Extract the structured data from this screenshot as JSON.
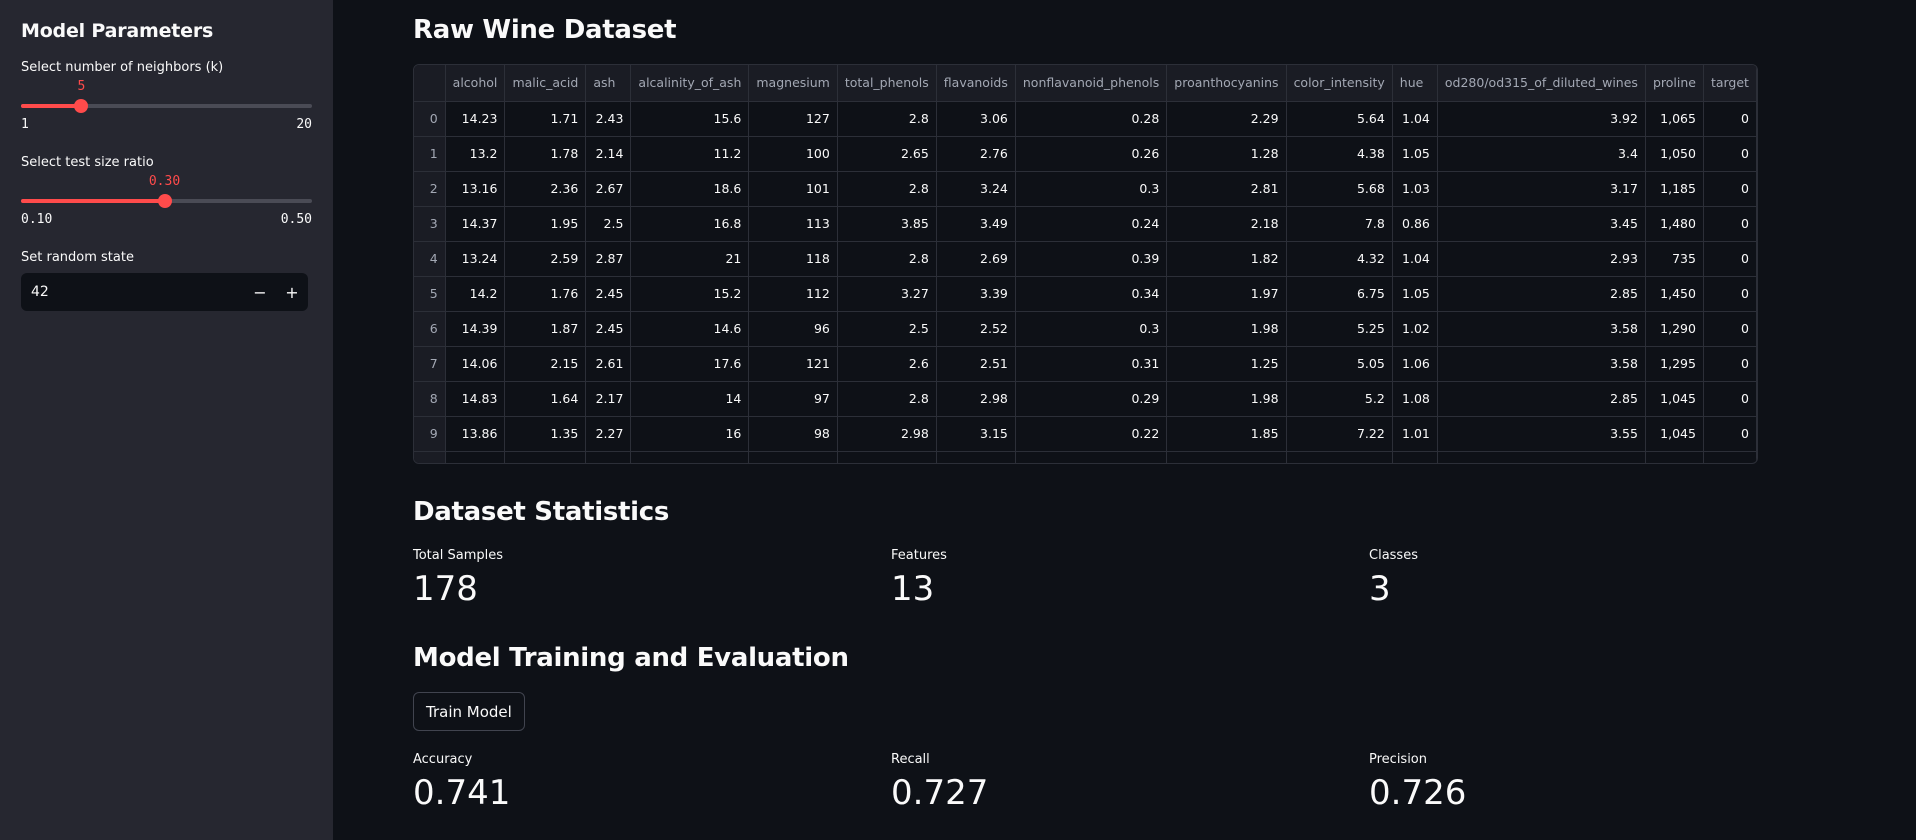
{
  "sidebar": {
    "title": "Model Parameters",
    "k_slider": {
      "label": "Select number of neighbors (k)",
      "value": "5",
      "min": "1",
      "max": "20",
      "fraction": 0.2105
    },
    "test_slider": {
      "label": "Select test size ratio",
      "value": "0.30",
      "min": "0.10",
      "max": "0.50",
      "fraction": 0.5
    },
    "random_state": {
      "label": "Set random state",
      "value": "42",
      "minus": "−",
      "plus": "+"
    }
  },
  "main": {
    "raw_title": "Raw Wine Dataset",
    "table": {
      "columns": [
        "",
        "alcohol",
        "malic_acid",
        "ash",
        "alcalinity_of_ash",
        "magnesium",
        "total_phenols",
        "flavanoids",
        "nonflavanoid_phenols",
        "proanthocyanins",
        "color_intensity",
        "hue",
        "od280/od315_of_diluted_wines",
        "proline",
        "target"
      ],
      "rows": [
        [
          "0",
          "14.23",
          "1.71",
          "2.43",
          "15.6",
          "127",
          "2.8",
          "3.06",
          "0.28",
          "2.29",
          "5.64",
          "1.04",
          "3.92",
          "1,065",
          "0"
        ],
        [
          "1",
          "13.2",
          "1.78",
          "2.14",
          "11.2",
          "100",
          "2.65",
          "2.76",
          "0.26",
          "1.28",
          "4.38",
          "1.05",
          "3.4",
          "1,050",
          "0"
        ],
        [
          "2",
          "13.16",
          "2.36",
          "2.67",
          "18.6",
          "101",
          "2.8",
          "3.24",
          "0.3",
          "2.81",
          "5.68",
          "1.03",
          "3.17",
          "1,185",
          "0"
        ],
        [
          "3",
          "14.37",
          "1.95",
          "2.5",
          "16.8",
          "113",
          "3.85",
          "3.49",
          "0.24",
          "2.18",
          "7.8",
          "0.86",
          "3.45",
          "1,480",
          "0"
        ],
        [
          "4",
          "13.24",
          "2.59",
          "2.87",
          "21",
          "118",
          "2.8",
          "2.69",
          "0.39",
          "1.82",
          "4.32",
          "1.04",
          "2.93",
          "735",
          "0"
        ],
        [
          "5",
          "14.2",
          "1.76",
          "2.45",
          "15.2",
          "112",
          "3.27",
          "3.39",
          "0.34",
          "1.97",
          "6.75",
          "1.05",
          "2.85",
          "1,450",
          "0"
        ],
        [
          "6",
          "14.39",
          "1.87",
          "2.45",
          "14.6",
          "96",
          "2.5",
          "2.52",
          "0.3",
          "1.98",
          "5.25",
          "1.02",
          "3.58",
          "1,290",
          "0"
        ],
        [
          "7",
          "14.06",
          "2.15",
          "2.61",
          "17.6",
          "121",
          "2.6",
          "2.51",
          "0.31",
          "1.25",
          "5.05",
          "1.06",
          "3.58",
          "1,295",
          "0"
        ],
        [
          "8",
          "14.83",
          "1.64",
          "2.17",
          "14",
          "97",
          "2.8",
          "2.98",
          "0.29",
          "1.98",
          "5.2",
          "1.08",
          "2.85",
          "1,045",
          "0"
        ],
        [
          "9",
          "13.86",
          "1.35",
          "2.27",
          "16",
          "98",
          "2.98",
          "3.15",
          "0.22",
          "1.85",
          "7.22",
          "1.01",
          "3.55",
          "1,045",
          "0"
        ]
      ]
    },
    "stats_title": "Dataset Statistics",
    "stats": [
      {
        "label": "Total Samples",
        "value": "178"
      },
      {
        "label": "Features",
        "value": "13"
      },
      {
        "label": "Classes",
        "value": "3"
      }
    ],
    "train_title": "Model Training and Evaluation",
    "train_button": "Train Model",
    "metrics": [
      {
        "label": "Accuracy",
        "value": "0.741"
      },
      {
        "label": "Recall",
        "value": "0.727"
      },
      {
        "label": "Precision",
        "value": "0.726"
      }
    ]
  },
  "colors": {
    "accent": "#ff4b4b",
    "background": "#0e1117",
    "sidebar": "#262730"
  }
}
